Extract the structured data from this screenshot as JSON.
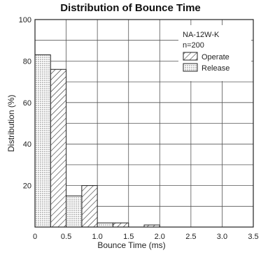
{
  "chart_data": {
    "type": "bar",
    "title": "Distribution of Bounce Time",
    "xlabel": "Bounce Time (ms)",
    "ylabel": "Distribution (%)",
    "xlim": [
      0,
      3.5
    ],
    "ylim": [
      0,
      100
    ],
    "x_ticks": [
      "0",
      "0.5",
      "1.0",
      "1.5",
      "2.0",
      "2.5",
      "3.0",
      "3.5"
    ],
    "y_ticks": [
      "20",
      "40",
      "60",
      "80",
      "100"
    ],
    "grid": true,
    "bin_edges": [
      0,
      0.25,
      0.5,
      0.75,
      1.0,
      1.25,
      1.5,
      1.75,
      2.0
    ],
    "series": [
      {
        "name": "Operate",
        "pattern": "hatched",
        "values": [
          0,
          76,
          0,
          20,
          0,
          2,
          0,
          1
        ]
      },
      {
        "name": "Release",
        "pattern": "dotted",
        "values": [
          83,
          0,
          15,
          0,
          2,
          0,
          0,
          0
        ]
      }
    ],
    "annotation_lines": [
      "NA-12W-K",
      "n=200"
    ],
    "legend_position": "top-right"
  }
}
